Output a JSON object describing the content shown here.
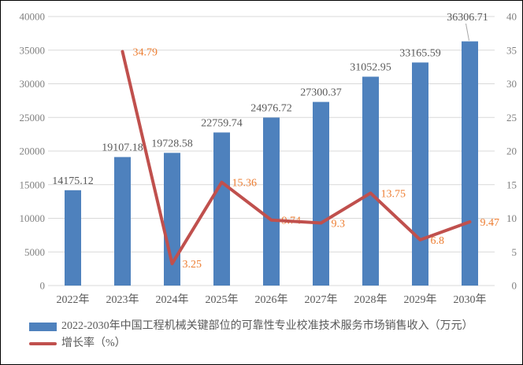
{
  "chart_data": {
    "type": "bar",
    "combo": "bar+line",
    "categories": [
      "2022年",
      "2023年",
      "2024年",
      "2025年",
      "2026年",
      "2027年",
      "2028年",
      "2029年",
      "2030年"
    ],
    "series": [
      {
        "name": "2022-2030年中国工程机械关键部位的可靠性专业校准技术服务市场销售收入（万元）",
        "type": "bar",
        "axis": "left",
        "color": "#4E81BD",
        "label_color": "#595959",
        "values": [
          14175.12,
          19107.18,
          19728.58,
          22759.74,
          24976.72,
          27300.37,
          31052.95,
          33165.59,
          36306.71
        ],
        "labels": [
          "14175.12",
          "19107.18",
          "19728.58",
          "22759.74",
          "24976.72",
          "27300.37",
          "31052.95",
          "33165.59",
          "36306.71"
        ],
        "callout_index": 8
      },
      {
        "name": "增长率（%）",
        "type": "line",
        "axis": "right",
        "color": "#C0504D",
        "label_color": "#ED7D31",
        "values": [
          null,
          34.79,
          3.25,
          15.36,
          9.74,
          9.3,
          13.75,
          6.8,
          9.47
        ],
        "labels": [
          null,
          "34.79",
          "3.25",
          "15.36",
          "9.74",
          "9.3",
          "13.75",
          "6.8",
          "9.47"
        ]
      }
    ],
    "axes": {
      "left": {
        "min": 0,
        "max": 40000,
        "step": 5000,
        "tick_labels": [
          "0",
          "5000",
          "10000",
          "15000",
          "20000",
          "25000",
          "30000",
          "35000",
          "40000"
        ]
      },
      "right": {
        "min": 0,
        "max": 40,
        "step": 5,
        "tick_labels": [
          "0",
          "5",
          "10",
          "15",
          "20",
          "25",
          "30",
          "35",
          "40"
        ]
      }
    },
    "grid": true,
    "legend_position": "bottom-left"
  },
  "colors": {
    "grid": "#D9D9D9",
    "axis_text": "#808080",
    "category_text": "#595959",
    "leader_line": "#A6A6A6",
    "background": "#FFFFFF"
  }
}
